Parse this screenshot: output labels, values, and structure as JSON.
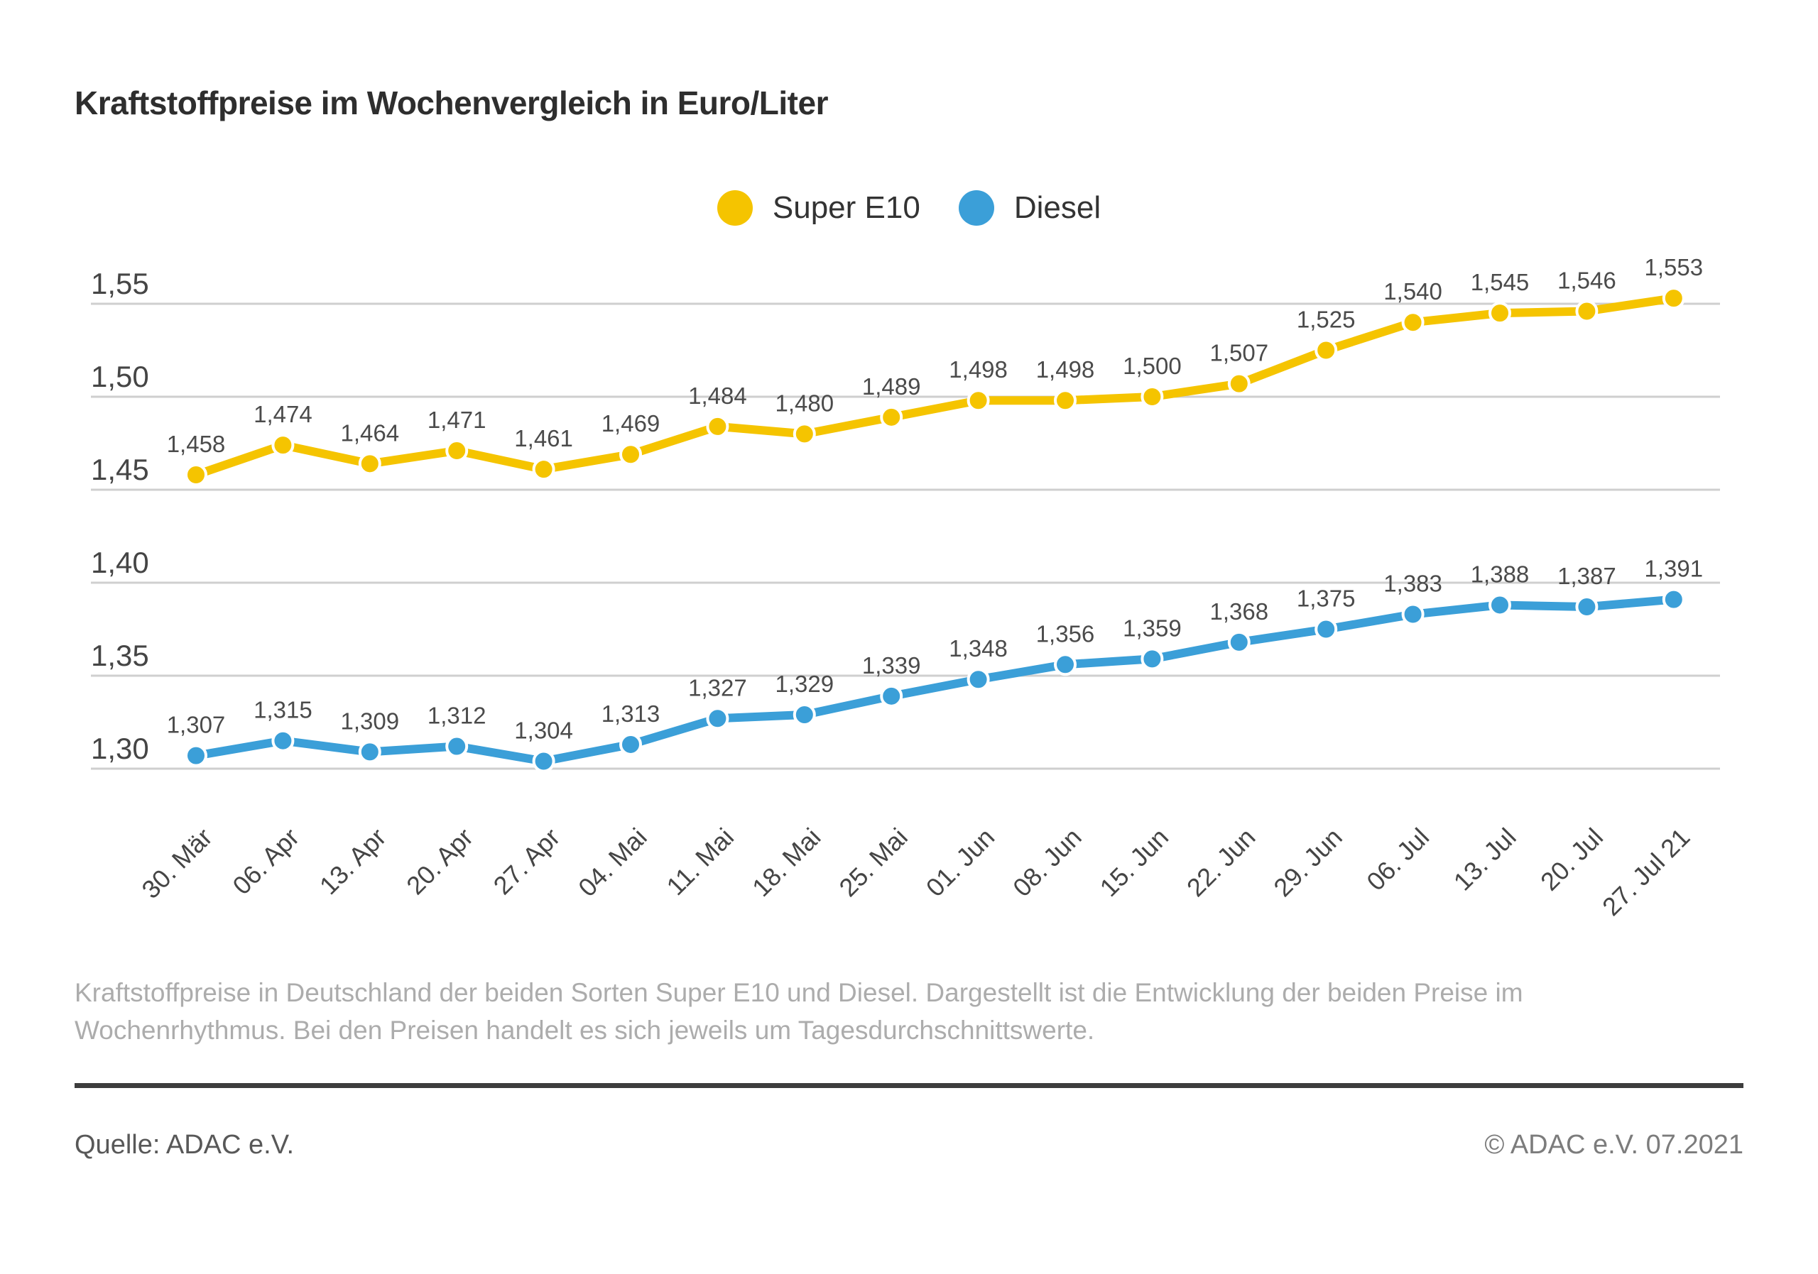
{
  "title": "Kraftstoffpreise im Wochenvergleich in Euro/Liter",
  "chart_data": {
    "type": "line",
    "title": "Kraftstoffpreise im Wochenvergleich in Euro/Liter",
    "unit": "Euro/Liter",
    "decimal_separator": ",",
    "grid": "horizontal",
    "legend_position": "top-center",
    "x_labels": [
      "30. Mär",
      "06. Apr",
      "13. Apr",
      "20. Apr",
      "27. Apr",
      "04. Mai",
      "11. Mai",
      "18. Mai",
      "25. Mai",
      "01. Jun",
      "08. Jun",
      "15. Jun",
      "22. Jun",
      "29. Jun",
      "06. Jul",
      "13. Jul",
      "20. Jul",
      "27. Jul 21"
    ],
    "series": [
      {
        "name": "Super E10",
        "color": "#f5c400",
        "values": [
          1.458,
          1.474,
          1.464,
          1.471,
          1.461,
          1.469,
          1.484,
          1.48,
          1.489,
          1.498,
          1.498,
          1.5,
          1.507,
          1.525,
          1.54,
          1.545,
          1.546,
          1.553
        ]
      },
      {
        "name": "Diesel",
        "color": "#3b9fd8",
        "values": [
          1.307,
          1.315,
          1.309,
          1.312,
          1.304,
          1.313,
          1.327,
          1.329,
          1.339,
          1.348,
          1.356,
          1.359,
          1.368,
          1.375,
          1.383,
          1.388,
          1.387,
          1.391
        ]
      }
    ],
    "ylim": [
      1.3,
      1.55
    ],
    "yticks": [
      1.55,
      1.5,
      1.45,
      1.4,
      1.35,
      1.3
    ],
    "ytick_labels": [
      "1,55",
      "1,50",
      "1,45",
      "1,40",
      "1,35",
      "1,30"
    ],
    "grid_color": "#cfcfcf",
    "label_color": "#4b4b4b",
    "axis_label_color": "#454545"
  },
  "footer": {
    "description_lines": [
      "Kraftstoffpreise in Deutschland der beiden Sorten Super E10 und Diesel. Dargestellt ist die Entwicklung der beiden Preise im",
      "Wochenrhythmus. Bei den Preisen handelt es sich jeweils um Tagesdurchschnittswerte."
    ],
    "source": "Quelle: ADAC e.V.",
    "copyright": "© ADAC e.V. 07.2021"
  }
}
